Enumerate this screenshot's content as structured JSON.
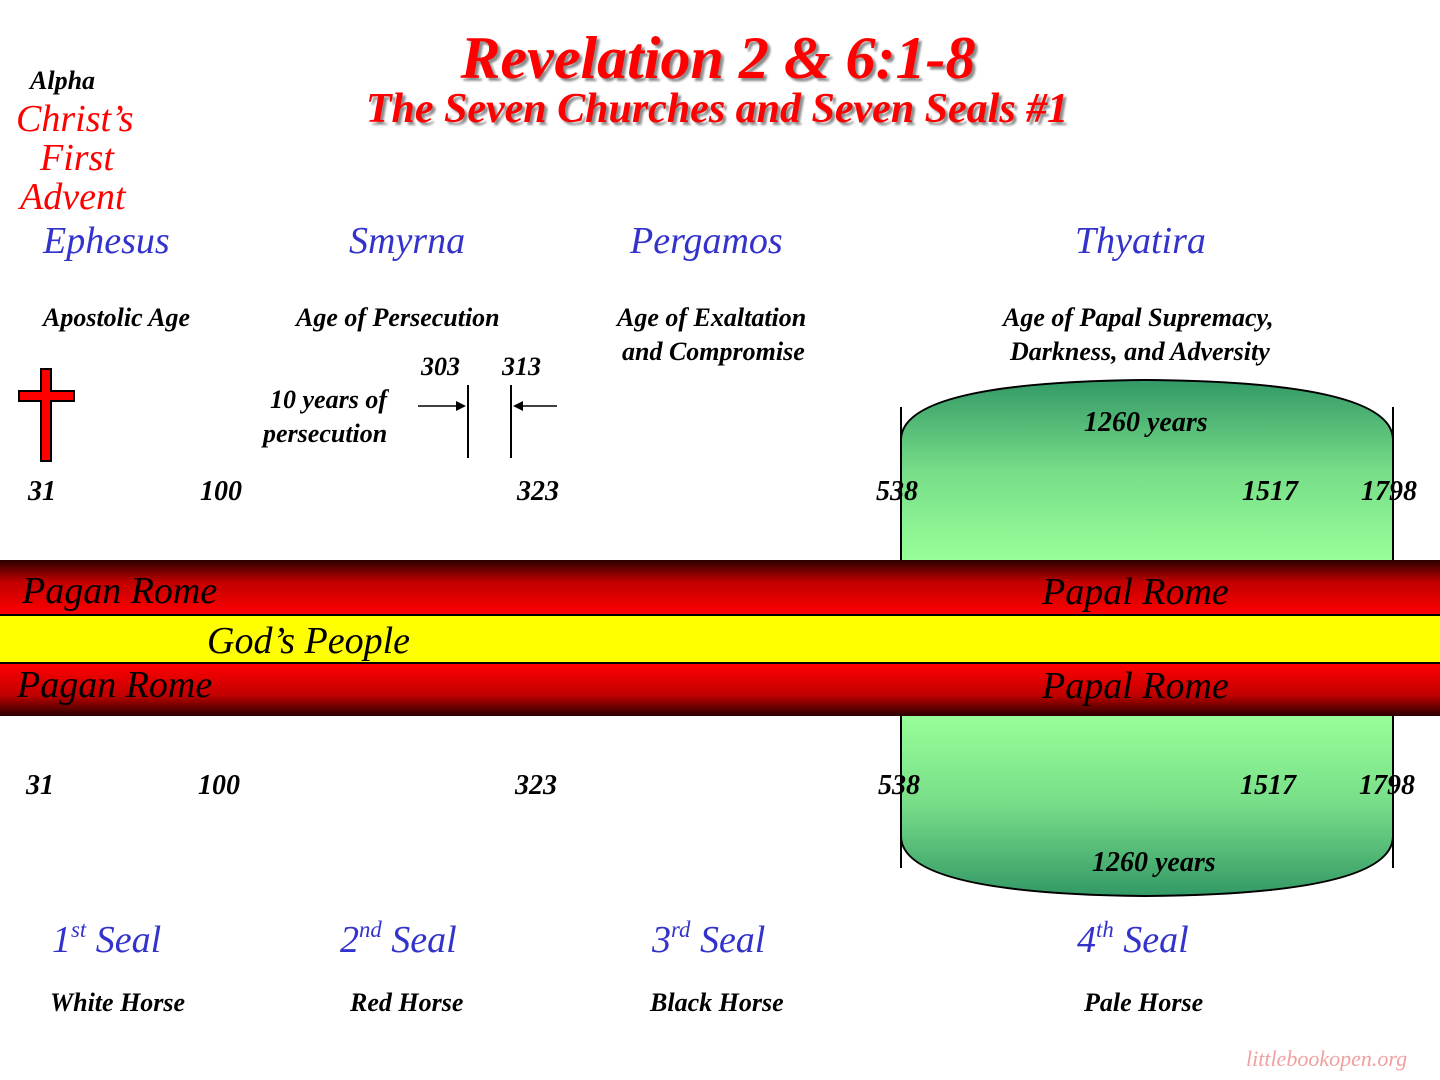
{
  "title": "Revelation 2 & 6:1-8",
  "subtitle": "The Seven Churches and Seven Seals #1",
  "alpha": {
    "label": "Alpha",
    "lines": [
      "Christ’s",
      "First",
      "Advent"
    ]
  },
  "churches": [
    {
      "name": "Ephesus",
      "age": [
        "Apostolic Age"
      ]
    },
    {
      "name": "Smyrna",
      "age": [
        "Age of Persecution"
      ]
    },
    {
      "name": "Pergamos",
      "age": [
        "Age of Exaltation",
        "and Compromise"
      ]
    },
    {
      "name": "Thyatira",
      "age": [
        "Age of Papal Supremacy,",
        "Darkness, and Adversity"
      ]
    }
  ],
  "persecution": {
    "label": [
      "10 years of",
      "persecution"
    ],
    "start": "303",
    "end": "313"
  },
  "years_top": [
    "31",
    "100",
    "323",
    "538",
    "1517",
    "1798"
  ],
  "years_bottom": [
    "31",
    "100",
    "323",
    "538",
    "1517",
    "1798"
  ],
  "period_top": "1260 years",
  "period_bottom": "1260 years",
  "bands": {
    "top": {
      "left": "Pagan Rome",
      "right": "Papal Rome"
    },
    "middle": "God’s People",
    "bottom": {
      "left": "Pagan Rome",
      "right": "Papal Rome"
    }
  },
  "seals": [
    {
      "num": "1",
      "sup": "st",
      "word": "Seal",
      "horse": "White Horse"
    },
    {
      "num": "2",
      "sup": "nd",
      "word": "Seal",
      "horse": "Red Horse"
    },
    {
      "num": "3",
      "sup": "rd",
      "word": "Seal",
      "horse": "Black Horse"
    },
    {
      "num": "4",
      "sup": "th",
      "word": "Seal",
      "horse": "Pale Horse"
    }
  ],
  "watermark": "littlebookopen.org",
  "colors": {
    "title": "#ff0000",
    "church": "#3333cc",
    "band_red": "#ff0000",
    "band_yellow": "#ffff00",
    "period_green": "#99ff99"
  }
}
